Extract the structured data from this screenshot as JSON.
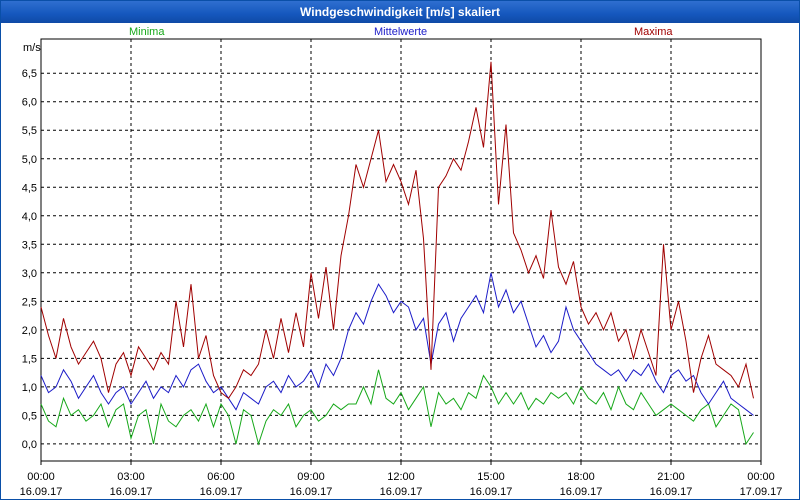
{
  "window": {
    "title": "Windgeschwindigkeit [m/s] skaliert"
  },
  "colors": {
    "min": "#17a81a",
    "avg": "#1c1cc8",
    "max": "#a00000",
    "frame": "#0a4fa8"
  },
  "chart_data": {
    "type": "line",
    "title": "Windgeschwindigkeit [m/s] skaliert",
    "ylabel": "m/s",
    "ylim": [
      -0.3,
      7.1
    ],
    "xlim": [
      0,
      24
    ],
    "grid": true,
    "legend_placement": "top",
    "y_ticks": [
      "0,0",
      "0,5",
      "1,0",
      "1,5",
      "2,0",
      "2,5",
      "3,0",
      "3,5",
      "4,0",
      "4,5",
      "5,0",
      "5,5",
      "6,0",
      "6,5"
    ],
    "x_ticks": [
      {
        "time": "00:00",
        "date": "16.09.17"
      },
      {
        "time": "03:00",
        "date": "16.09.17"
      },
      {
        "time": "06:00",
        "date": "16.09.17"
      },
      {
        "time": "09:00",
        "date": "16.09.17"
      },
      {
        "time": "12:00",
        "date": "16.09.17"
      },
      {
        "time": "15:00",
        "date": "16.09.17"
      },
      {
        "time": "18:00",
        "date": "16.09.17"
      },
      {
        "time": "21:00",
        "date": "16.09.17"
      },
      {
        "time": "00:00",
        "date": "17.09.17"
      }
    ],
    "series": [
      {
        "name": "Minima",
        "x": [
          0.0,
          0.25,
          0.5,
          0.75,
          1.0,
          1.25,
          1.5,
          1.75,
          2.0,
          2.25,
          2.5,
          2.75,
          3.0,
          3.25,
          3.5,
          3.75,
          4.0,
          4.25,
          4.5,
          4.75,
          5.0,
          5.25,
          5.5,
          5.75,
          6.0,
          6.25,
          6.5,
          6.75,
          7.0,
          7.25,
          7.5,
          7.75,
          8.0,
          8.25,
          8.5,
          8.75,
          9.0,
          9.25,
          9.5,
          9.75,
          10.0,
          10.25,
          10.5,
          10.75,
          11.0,
          11.25,
          11.5,
          11.75,
          12.0,
          12.25,
          12.5,
          12.75,
          13.0,
          13.25,
          13.5,
          13.75,
          14.0,
          14.25,
          14.5,
          14.75,
          15.0,
          15.25,
          15.5,
          15.75,
          16.0,
          16.25,
          16.5,
          16.75,
          17.0,
          17.25,
          17.5,
          17.75,
          18.0,
          18.25,
          18.5,
          18.75,
          19.0,
          19.25,
          19.5,
          19.75,
          20.0,
          20.25,
          20.5,
          20.75,
          21.0,
          21.25,
          21.5,
          21.75,
          22.0,
          22.25,
          22.5,
          22.75,
          23.0,
          23.25,
          23.5,
          23.75
        ],
        "values": [
          0.7,
          0.4,
          0.3,
          0.8,
          0.5,
          0.6,
          0.4,
          0.5,
          0.7,
          0.3,
          0.6,
          0.7,
          0.1,
          0.5,
          0.6,
          0.0,
          0.7,
          0.4,
          0.3,
          0.5,
          0.6,
          0.4,
          0.7,
          0.3,
          0.7,
          0.5,
          0.0,
          0.6,
          0.5,
          0.0,
          0.4,
          0.6,
          0.5,
          0.7,
          0.3,
          0.5,
          0.6,
          0.4,
          0.5,
          0.7,
          0.6,
          0.7,
          0.7,
          1.0,
          0.7,
          1.3,
          0.8,
          0.7,
          0.9,
          0.6,
          0.8,
          1.0,
          0.3,
          0.9,
          0.7,
          0.8,
          0.6,
          0.9,
          0.8,
          1.2,
          1.0,
          0.7,
          0.9,
          0.7,
          0.9,
          0.6,
          0.8,
          0.7,
          0.9,
          0.8,
          0.9,
          0.7,
          1.0,
          0.8,
          0.7,
          0.9,
          0.6,
          1.0,
          0.7,
          0.6,
          0.9,
          0.7,
          0.5,
          0.6,
          0.7,
          0.6,
          0.5,
          0.4,
          0.6,
          0.7,
          0.3,
          0.5,
          0.7,
          0.6,
          0.0,
          0.2
        ]
      },
      {
        "name": "Mittelwerte",
        "x": [
          0.0,
          0.25,
          0.5,
          0.75,
          1.0,
          1.25,
          1.5,
          1.75,
          2.0,
          2.25,
          2.5,
          2.75,
          3.0,
          3.25,
          3.5,
          3.75,
          4.0,
          4.25,
          4.5,
          4.75,
          5.0,
          5.25,
          5.5,
          5.75,
          6.0,
          6.25,
          6.5,
          6.75,
          7.0,
          7.25,
          7.5,
          7.75,
          8.0,
          8.25,
          8.5,
          8.75,
          9.0,
          9.25,
          9.5,
          9.75,
          10.0,
          10.25,
          10.5,
          10.75,
          11.0,
          11.25,
          11.5,
          11.75,
          12.0,
          12.25,
          12.5,
          12.75,
          13.0,
          13.25,
          13.5,
          13.75,
          14.0,
          14.25,
          14.5,
          14.75,
          15.0,
          15.25,
          15.5,
          15.75,
          16.0,
          16.25,
          16.5,
          16.75,
          17.0,
          17.25,
          17.5,
          17.75,
          18.0,
          18.25,
          18.5,
          18.75,
          19.0,
          19.25,
          19.5,
          19.75,
          20.0,
          20.25,
          20.5,
          20.75,
          21.0,
          21.25,
          21.5,
          21.75,
          22.0,
          22.25,
          22.5,
          22.75,
          23.0,
          23.25,
          23.5,
          23.75
        ],
        "values": [
          1.2,
          0.9,
          1.0,
          1.3,
          1.1,
          0.8,
          1.0,
          1.2,
          0.9,
          0.7,
          0.9,
          1.0,
          0.7,
          0.9,
          1.1,
          0.8,
          1.0,
          0.9,
          1.2,
          1.0,
          1.3,
          1.4,
          1.1,
          0.9,
          1.0,
          0.8,
          0.6,
          0.9,
          0.8,
          0.7,
          1.0,
          1.1,
          0.9,
          1.2,
          1.0,
          1.1,
          1.3,
          1.0,
          1.4,
          1.2,
          1.5,
          2.0,
          2.3,
          2.1,
          2.5,
          2.8,
          2.6,
          2.3,
          2.5,
          2.4,
          2.0,
          2.2,
          1.4,
          2.1,
          2.3,
          1.8,
          2.2,
          2.4,
          2.6,
          2.3,
          3.0,
          2.4,
          2.7,
          2.3,
          2.5,
          2.1,
          1.7,
          1.9,
          1.6,
          1.8,
          2.4,
          2.0,
          1.8,
          1.6,
          1.4,
          1.3,
          1.2,
          1.3,
          1.1,
          1.3,
          1.2,
          1.4,
          1.1,
          0.9,
          1.2,
          1.3,
          1.1,
          1.2,
          0.9,
          0.7,
          0.9,
          1.1,
          0.8,
          0.7,
          0.6,
          0.5
        ]
      },
      {
        "name": "Maxima",
        "x": [
          0.0,
          0.25,
          0.5,
          0.75,
          1.0,
          1.25,
          1.5,
          1.75,
          2.0,
          2.25,
          2.5,
          2.75,
          3.0,
          3.25,
          3.5,
          3.75,
          4.0,
          4.25,
          4.5,
          4.75,
          5.0,
          5.25,
          5.5,
          5.75,
          6.0,
          6.25,
          6.5,
          6.75,
          7.0,
          7.25,
          7.5,
          7.75,
          8.0,
          8.25,
          8.5,
          8.75,
          9.0,
          9.25,
          9.5,
          9.75,
          10.0,
          10.25,
          10.5,
          10.75,
          11.0,
          11.25,
          11.5,
          11.75,
          12.0,
          12.25,
          12.5,
          12.75,
          13.0,
          13.25,
          13.5,
          13.75,
          14.0,
          14.25,
          14.5,
          14.75,
          15.0,
          15.25,
          15.5,
          15.75,
          16.0,
          16.25,
          16.5,
          16.75,
          17.0,
          17.25,
          17.5,
          17.75,
          18.0,
          18.25,
          18.5,
          18.75,
          19.0,
          19.25,
          19.5,
          19.75,
          20.0,
          20.25,
          20.5,
          20.75,
          21.0,
          21.25,
          21.5,
          21.75,
          22.0,
          22.25,
          22.5,
          22.75,
          23.0,
          23.25,
          23.5,
          23.75
        ],
        "values": [
          2.4,
          1.9,
          1.5,
          2.2,
          1.7,
          1.4,
          1.6,
          1.8,
          1.5,
          0.9,
          1.4,
          1.6,
          1.2,
          1.7,
          1.5,
          1.3,
          1.6,
          1.4,
          2.5,
          1.7,
          2.8,
          1.5,
          1.9,
          1.2,
          0.9,
          0.8,
          1.0,
          1.3,
          1.2,
          1.4,
          2.0,
          1.5,
          2.2,
          1.6,
          2.3,
          1.7,
          3.0,
          2.2,
          3.1,
          2.0,
          3.3,
          4.0,
          4.9,
          4.5,
          5.0,
          5.5,
          4.6,
          4.9,
          4.6,
          4.2,
          4.8,
          3.6,
          1.3,
          4.5,
          4.7,
          5.0,
          4.8,
          5.3,
          5.9,
          5.2,
          6.7,
          4.2,
          5.6,
          3.7,
          3.4,
          3.0,
          3.3,
          2.9,
          4.1,
          3.1,
          2.8,
          3.2,
          2.4,
          2.1,
          2.3,
          2.0,
          2.3,
          1.8,
          2.0,
          1.5,
          2.0,
          1.6,
          1.2,
          3.5,
          2.0,
          2.5,
          1.8,
          0.9,
          1.5,
          1.9,
          1.4,
          1.3,
          1.2,
          1.0,
          1.4,
          0.8
        ]
      }
    ]
  }
}
